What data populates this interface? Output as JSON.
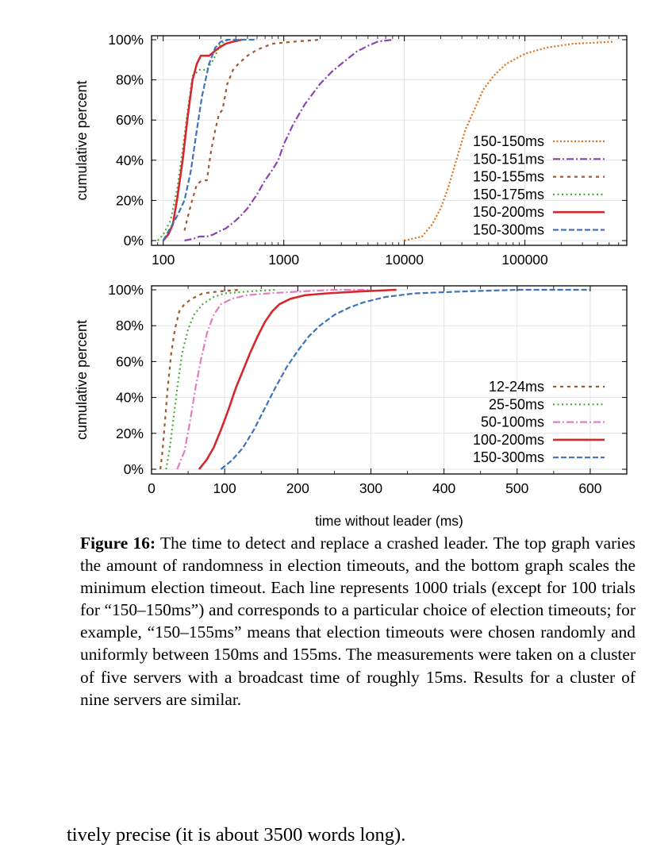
{
  "chart_data": [
    {
      "type": "line",
      "xscale": "log",
      "xlim": [
        80,
        700000
      ],
      "ylim": [
        0,
        100
      ],
      "xticks": [
        "100",
        "1000",
        "10000",
        "100000"
      ],
      "xtick_values": [
        100,
        1000,
        10000,
        100000
      ],
      "yticks": [
        "0%",
        "20%",
        "40%",
        "60%",
        "80%",
        "100%"
      ],
      "ylabel": "cumulative percent",
      "xlabel": "",
      "grid": true,
      "legend": "right",
      "series": [
        {
          "name": "150-150ms",
          "color": "#e0701a",
          "dash": "2,2.5",
          "x": [
            10000,
            14000,
            17000,
            20000,
            23000,
            27000,
            32000,
            38000,
            45000,
            55000,
            70000,
            100000,
            150000,
            250000,
            550000
          ],
          "y": [
            0,
            2,
            8,
            16,
            26,
            40,
            55,
            65,
            75,
            82,
            88,
            93,
            96,
            98,
            99
          ]
        },
        {
          "name": "150-151ms",
          "color": "#8b44b0",
          "dash": "9,3,2,3",
          "x": [
            150,
            180,
            200,
            230,
            260,
            300,
            330,
            400,
            450,
            500,
            600,
            700,
            800,
            900,
            1000,
            1200,
            1500,
            2000,
            2500,
            3000,
            4000,
            5000,
            6000,
            8000
          ],
          "y": [
            0,
            1,
            2,
            2,
            3,
            5,
            6,
            10,
            13,
            16,
            23,
            30,
            35,
            40,
            48,
            58,
            68,
            78,
            84,
            88,
            94,
            97,
            99,
            100
          ]
        },
        {
          "name": "150-155ms",
          "color": "#a0582e",
          "dash": "4,5",
          "x": [
            150,
            170,
            190,
            210,
            230,
            250,
            270,
            290,
            310,
            340,
            380,
            420,
            500,
            600,
            800,
            1200,
            2000
          ],
          "y": [
            5,
            18,
            28,
            30,
            30,
            45,
            55,
            63,
            65,
            78,
            85,
            88,
            92,
            95,
            98,
            99,
            100
          ]
        },
        {
          "name": "150-175ms",
          "color": "#4aaa3c",
          "dash": "2,3.5",
          "x": [
            90,
            100,
            115,
            130,
            145,
            160,
            175,
            200,
            230,
            260,
            300,
            350
          ],
          "y": [
            0,
            3,
            10,
            25,
            45,
            65,
            82,
            85,
            85,
            90,
            98,
            100
          ]
        },
        {
          "name": "150-200ms",
          "color": "#d6282b",
          "dash": "",
          "x": [
            100,
            110,
            120,
            130,
            145,
            160,
            175,
            190,
            205,
            240,
            290,
            330,
            380,
            450
          ],
          "y": [
            0,
            3,
            8,
            20,
            40,
            62,
            80,
            88,
            92,
            92,
            96,
            98,
            99,
            100
          ]
        },
        {
          "name": "150-300ms",
          "color": "#3d73b8",
          "dash": "7,3",
          "x": [
            100,
            130,
            150,
            170,
            190,
            210,
            240,
            270,
            300,
            340,
            400,
            500,
            600
          ],
          "y": [
            0,
            12,
            20,
            35,
            55,
            72,
            88,
            96,
            99,
            100,
            100,
            100,
            100
          ]
        }
      ]
    },
    {
      "type": "line",
      "xlim": [
        0,
        650
      ],
      "ylim": [
        0,
        100
      ],
      "xticks": [
        "0",
        "100",
        "200",
        "300",
        "400",
        "500",
        "600"
      ],
      "xtick_values": [
        0,
        100,
        200,
        300,
        400,
        500,
        600
      ],
      "yticks": [
        "0%",
        "20%",
        "40%",
        "60%",
        "80%",
        "100%"
      ],
      "ylabel": "cumulative percent",
      "xlabel": "time without leader (ms)",
      "grid": true,
      "legend": "right",
      "series": [
        {
          "name": "12-24ms",
          "color": "#a0582e",
          "dash": "4,5",
          "x": [
            12,
            15,
            18,
            22,
            27,
            32,
            38,
            45,
            55,
            70,
            90,
            120
          ],
          "y": [
            0,
            10,
            25,
            45,
            65,
            78,
            88,
            92,
            95,
            98,
            99,
            100
          ]
        },
        {
          "name": "25-50ms",
          "color": "#4aaa3c",
          "dash": "2,3.5",
          "x": [
            20,
            25,
            30,
            36,
            42,
            50,
            58,
            70,
            85,
            100,
            130,
            170
          ],
          "y": [
            0,
            12,
            28,
            48,
            65,
            78,
            86,
            92,
            96,
            98,
            99,
            100
          ]
        },
        {
          "name": "50-100ms",
          "color": "#e07fc0",
          "dash": "9,3,2,3",
          "x": [
            35,
            45,
            52,
            60,
            68,
            76,
            85,
            95,
            110,
            130,
            160,
            200,
            250,
            300
          ],
          "y": [
            0,
            10,
            25,
            45,
            62,
            76,
            86,
            92,
            95,
            97,
            98,
            99,
            100,
            100
          ]
        },
        {
          "name": "100-200ms",
          "color": "#d6282b",
          "dash": "",
          "x": [
            65,
            75,
            85,
            95,
            105,
            115,
            125,
            135,
            145,
            155,
            165,
            175,
            190,
            210,
            240,
            280,
            335
          ],
          "y": [
            0,
            5,
            12,
            22,
            33,
            45,
            55,
            65,
            74,
            82,
            88,
            92,
            95,
            97,
            98,
            99,
            100
          ]
        },
        {
          "name": "150-300ms",
          "color": "#3d73b8",
          "dash": "7,3",
          "x": [
            95,
            110,
            125,
            140,
            155,
            170,
            185,
            200,
            215,
            230,
            250,
            270,
            290,
            320,
            360,
            420,
            500,
            600
          ],
          "y": [
            0,
            5,
            12,
            22,
            34,
            46,
            57,
            66,
            74,
            80,
            86,
            90,
            93,
            96,
            98,
            99,
            100,
            100
          ]
        }
      ]
    }
  ],
  "caption": {
    "label": "Figure 16:",
    "text": "The time to detect and replace a crashed leader. The top graph varies the amount of randomness in election timeouts, and the bottom graph scales the minimum election timeout. Each line represents 1000 trials (except for 100 trials for “150–150ms”) and corresponds to a particular choice of election timeouts; for example, “150–155ms” means that election timeouts were chosen randomly and uniformly between 150ms and 155ms. The measurements were taken on a cluster of five servers with a broadcast time of roughly 15ms. Results for a cluster of nine servers are similar."
  },
  "body_text": "tively precise (it is about 3500 words long)."
}
